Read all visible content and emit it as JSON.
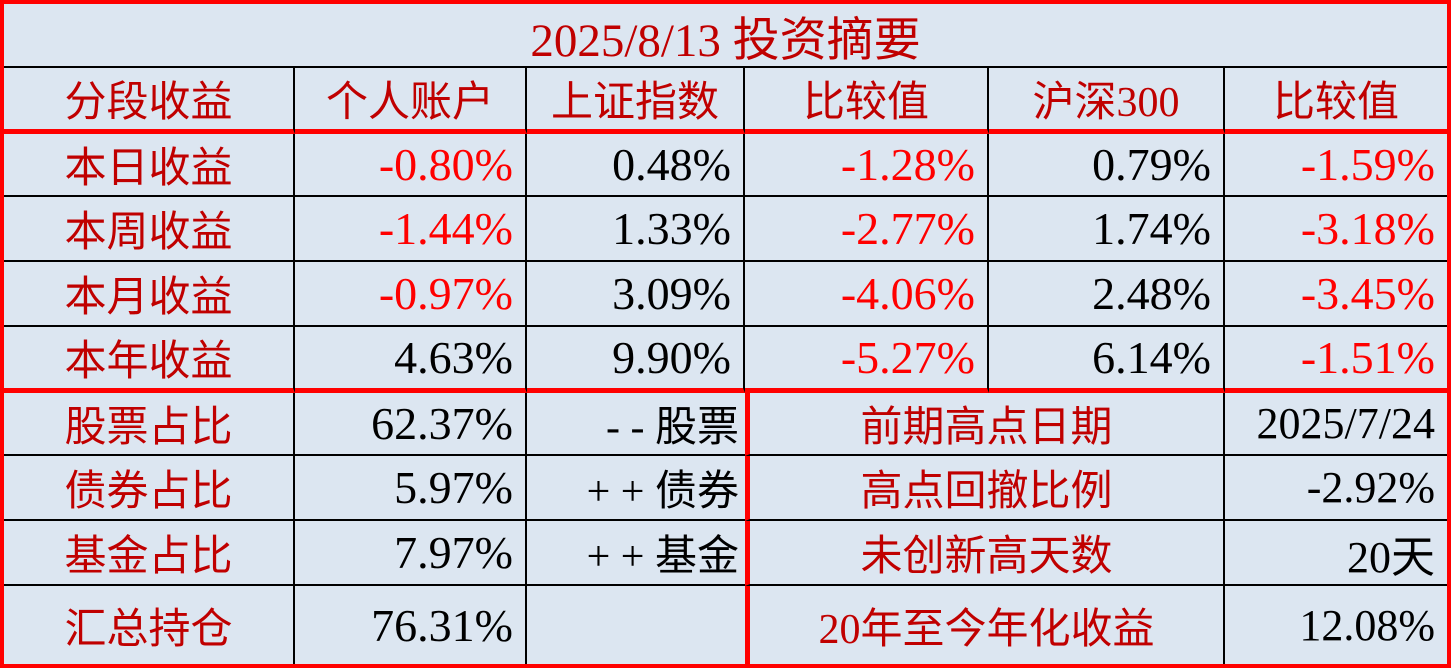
{
  "title": "2025/8/13 投资摘要",
  "colors": {
    "background": "#DCE6F1",
    "label_red": "#C00000",
    "negative_value_red": "#FF0000",
    "value_black": "#000000",
    "grid_line_black": "#000000",
    "section_border_red": "#FF0000"
  },
  "header": {
    "segment": "分段收益",
    "account": "个人账户",
    "sse": "上证指数",
    "compare1": "比较值",
    "csi300": "沪深300",
    "compare2": "比较值"
  },
  "returns": [
    {
      "label": "本日收益",
      "account": "-0.80%",
      "sse": "0.48%",
      "compare1": "-1.28%",
      "csi300": "0.79%",
      "compare2": "-1.59%"
    },
    {
      "label": "本周收益",
      "account": "-1.44%",
      "sse": "1.33%",
      "compare1": "-2.77%",
      "csi300": "1.74%",
      "compare2": "-3.18%"
    },
    {
      "label": "本月收益",
      "account": "-0.97%",
      "sse": "3.09%",
      "compare1": "-4.06%",
      "csi300": "2.48%",
      "compare2": "-3.45%"
    },
    {
      "label": "本年收益",
      "account": "4.63%",
      "sse": "9.90%",
      "compare1": "-5.27%",
      "csi300": "6.14%",
      "compare2": "-1.51%"
    }
  ],
  "holdings": [
    {
      "label": "股票占比",
      "value": "62.37%",
      "tag": "- - 股票",
      "stat_label": "前期高点日期",
      "stat_value": "2025/7/24"
    },
    {
      "label": "债券占比",
      "value": "5.97%",
      "tag": "+ + 债券",
      "stat_label": "高点回撤比例",
      "stat_value": "-2.92%"
    },
    {
      "label": "基金占比",
      "value": "7.97%",
      "tag": "+ + 基金",
      "stat_label": "未创新高天数",
      "stat_value": "20天"
    },
    {
      "label": "汇总持仓",
      "value": "76.31%",
      "tag": "",
      "stat_label": "20年至今年化收益",
      "stat_value": "12.08%"
    }
  ]
}
